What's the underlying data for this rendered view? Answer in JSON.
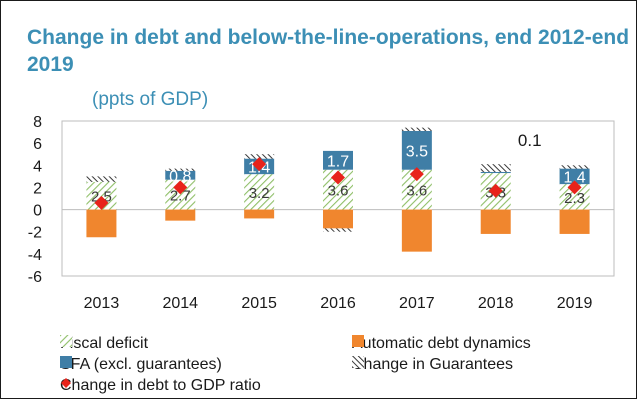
{
  "chart_data": {
    "type": "bar",
    "title": "Change in debt and below-the-line-operations, end 2012-end 2019",
    "subtitle": "(ppts of GDP)",
    "categories": [
      "2013",
      "2014",
      "2015",
      "2016",
      "2017",
      "2018",
      "2019"
    ],
    "ylim": [
      -6,
      8
    ],
    "yticks": [
      8,
      6,
      4,
      2,
      0,
      -2,
      -4,
      -6
    ],
    "grid": false,
    "legend_position": "bottom",
    "series": [
      {
        "name": "Fiscal deficit",
        "values": [
          2.5,
          2.7,
          3.2,
          3.6,
          3.6,
          3.3,
          2.3
        ],
        "color": "#8fbf68",
        "labels": [
          "2.5",
          "2.7",
          "3.2",
          "3.6",
          "3.6",
          "3.3",
          "2.3"
        ]
      },
      {
        "name": "Automatic debt dynamics",
        "values": [
          -2.5,
          -1.0,
          -0.8,
          -1.7,
          -3.8,
          -2.2,
          -2.2
        ],
        "color": "#f0862e"
      },
      {
        "name": "SFA (excl. guarantees)",
        "values": [
          0.0,
          0.8,
          1.4,
          1.7,
          3.5,
          0.1,
          1.4
        ],
        "color": "#3f7ea6",
        "labels": [
          "",
          "0.8",
          "1.4",
          "1.7",
          "3.5",
          "0.1",
          "1.4"
        ]
      },
      {
        "name": "Change in Guarantees",
        "values": [
          0.5,
          0.2,
          0.4,
          -0.3,
          0.3,
          0.7,
          0.3
        ],
        "color": "#333333"
      },
      {
        "name": "Change in debt to GDP ratio",
        "values": [
          0.6,
          2.0,
          4.1,
          2.9,
          3.2,
          1.7,
          2.0
        ],
        "color": "#e8231b"
      }
    ]
  },
  "legend": [
    {
      "label": "Fiscal deficit",
      "icon": "hatched-green-swatch"
    },
    {
      "label": "Automatic debt dynamics",
      "icon": "orange-swatch"
    },
    {
      "label": "SFA (excl. guarantees)",
      "icon": "blue-swatch"
    },
    {
      "label": "Change in Guarantees",
      "icon": "hatched-black-swatch"
    },
    {
      "label": "Change in debt to GDP ratio",
      "icon": "red-diamond"
    }
  ]
}
